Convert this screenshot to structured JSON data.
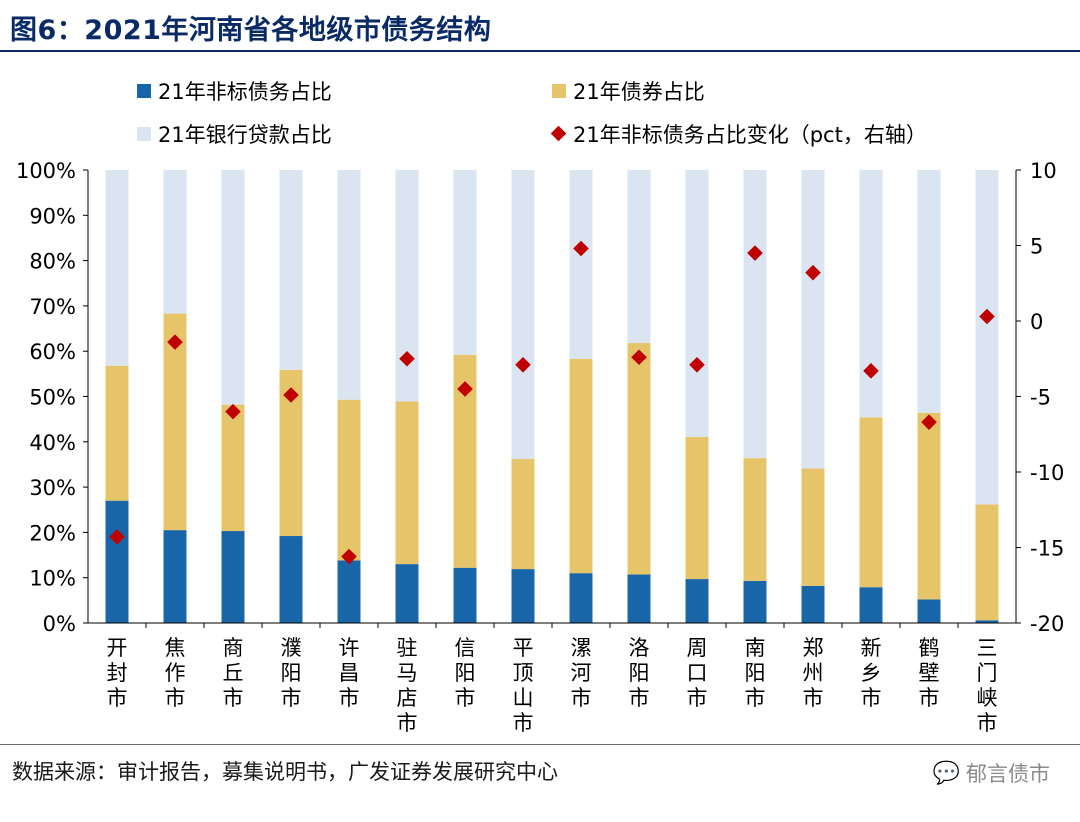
{
  "title": "图6：2021年河南省各地级市债务结构",
  "source": "数据来源：审计报告，募集说明书，广发证券发展研究中心",
  "watermark": {
    "icon": "wechat-icon",
    "text": "郁言债市"
  },
  "colors": {
    "nonstandard": "#1865a8",
    "bond": "#e6c46a",
    "loan": "#dbe4f1",
    "change": "#c00000",
    "title": "#0a2a66"
  },
  "chart_data": {
    "type": "bar",
    "stacked": true,
    "categories": [
      "开封市",
      "焦作市",
      "商丘市",
      "濮阳市",
      "许昌市",
      "驻马店市",
      "信阳市",
      "平顶山市",
      "漯河市",
      "洛阳市",
      "周口市",
      "南阳市",
      "郑州市",
      "新乡市",
      "鹤壁市",
      "三门峡市"
    ],
    "series": [
      {
        "name": "21年非标债务占比",
        "axis": "left",
        "values": [
          27.0,
          20.5,
          20.3,
          19.2,
          13.8,
          13.0,
          12.2,
          11.9,
          11.0,
          10.7,
          9.7,
          9.3,
          8.2,
          7.9,
          5.2,
          0.6
        ]
      },
      {
        "name": "21年债券占比",
        "axis": "left",
        "values": [
          29.8,
          47.8,
          27.9,
          36.7,
          35.5,
          35.9,
          47.0,
          24.3,
          47.3,
          51.1,
          31.4,
          27.1,
          25.9,
          37.5,
          41.2,
          25.6
        ]
      },
      {
        "name": "21年银行贷款占比",
        "axis": "left",
        "values": [
          43.2,
          31.7,
          51.8,
          44.1,
          50.7,
          51.1,
          40.8,
          63.8,
          41.7,
          38.2,
          58.9,
          63.6,
          65.9,
          54.6,
          53.6,
          73.8
        ]
      },
      {
        "name": "21年非标债务占比变化（pct，右轴）",
        "axis": "right",
        "type": "scatter",
        "values": [
          -14.3,
          -1.4,
          -6.0,
          -4.9,
          -15.6,
          -2.5,
          -4.5,
          -2.9,
          4.8,
          -2.4,
          -2.9,
          4.5,
          3.2,
          -3.3,
          -6.7,
          0.3
        ]
      }
    ],
    "y_left": {
      "ylim": [
        0,
        100
      ],
      "ticks": [
        "0%",
        "10%",
        "20%",
        "30%",
        "40%",
        "50%",
        "60%",
        "70%",
        "80%",
        "90%",
        "100%"
      ]
    },
    "y_right": {
      "ylim": [
        -20,
        10
      ],
      "ticks": [
        "-20",
        "-15",
        "-10",
        "-5",
        "0",
        "5",
        "10"
      ]
    },
    "legend": "top"
  }
}
